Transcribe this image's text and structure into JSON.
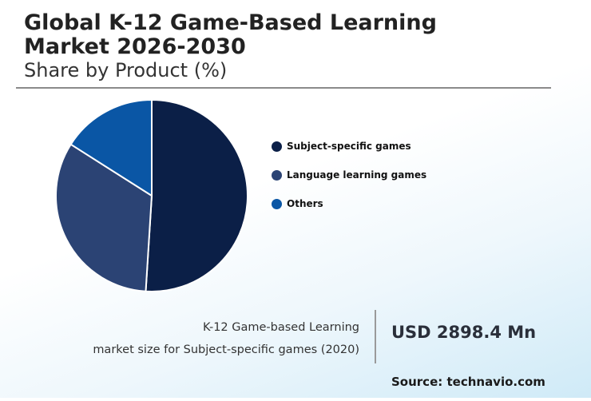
{
  "title": "Global K-12 Game-Based Learning Market 2026-2030",
  "subtitle": "Share by Product (%)",
  "chart_data": {
    "type": "pie",
    "categories": [
      "Subject-specific games",
      "Language learning games",
      "Others"
    ],
    "values": [
      51,
      33,
      16
    ],
    "colors": [
      "#0b1f47",
      "#2b4374",
      "#0a56a5"
    ],
    "legend_position": "right"
  },
  "stat": {
    "line1": "K-12 Game-based Learning",
    "line2": "market size for Subject-specific games (2020)",
    "value": "USD 2898.4 Mn"
  },
  "source": "Source: technavio.com"
}
